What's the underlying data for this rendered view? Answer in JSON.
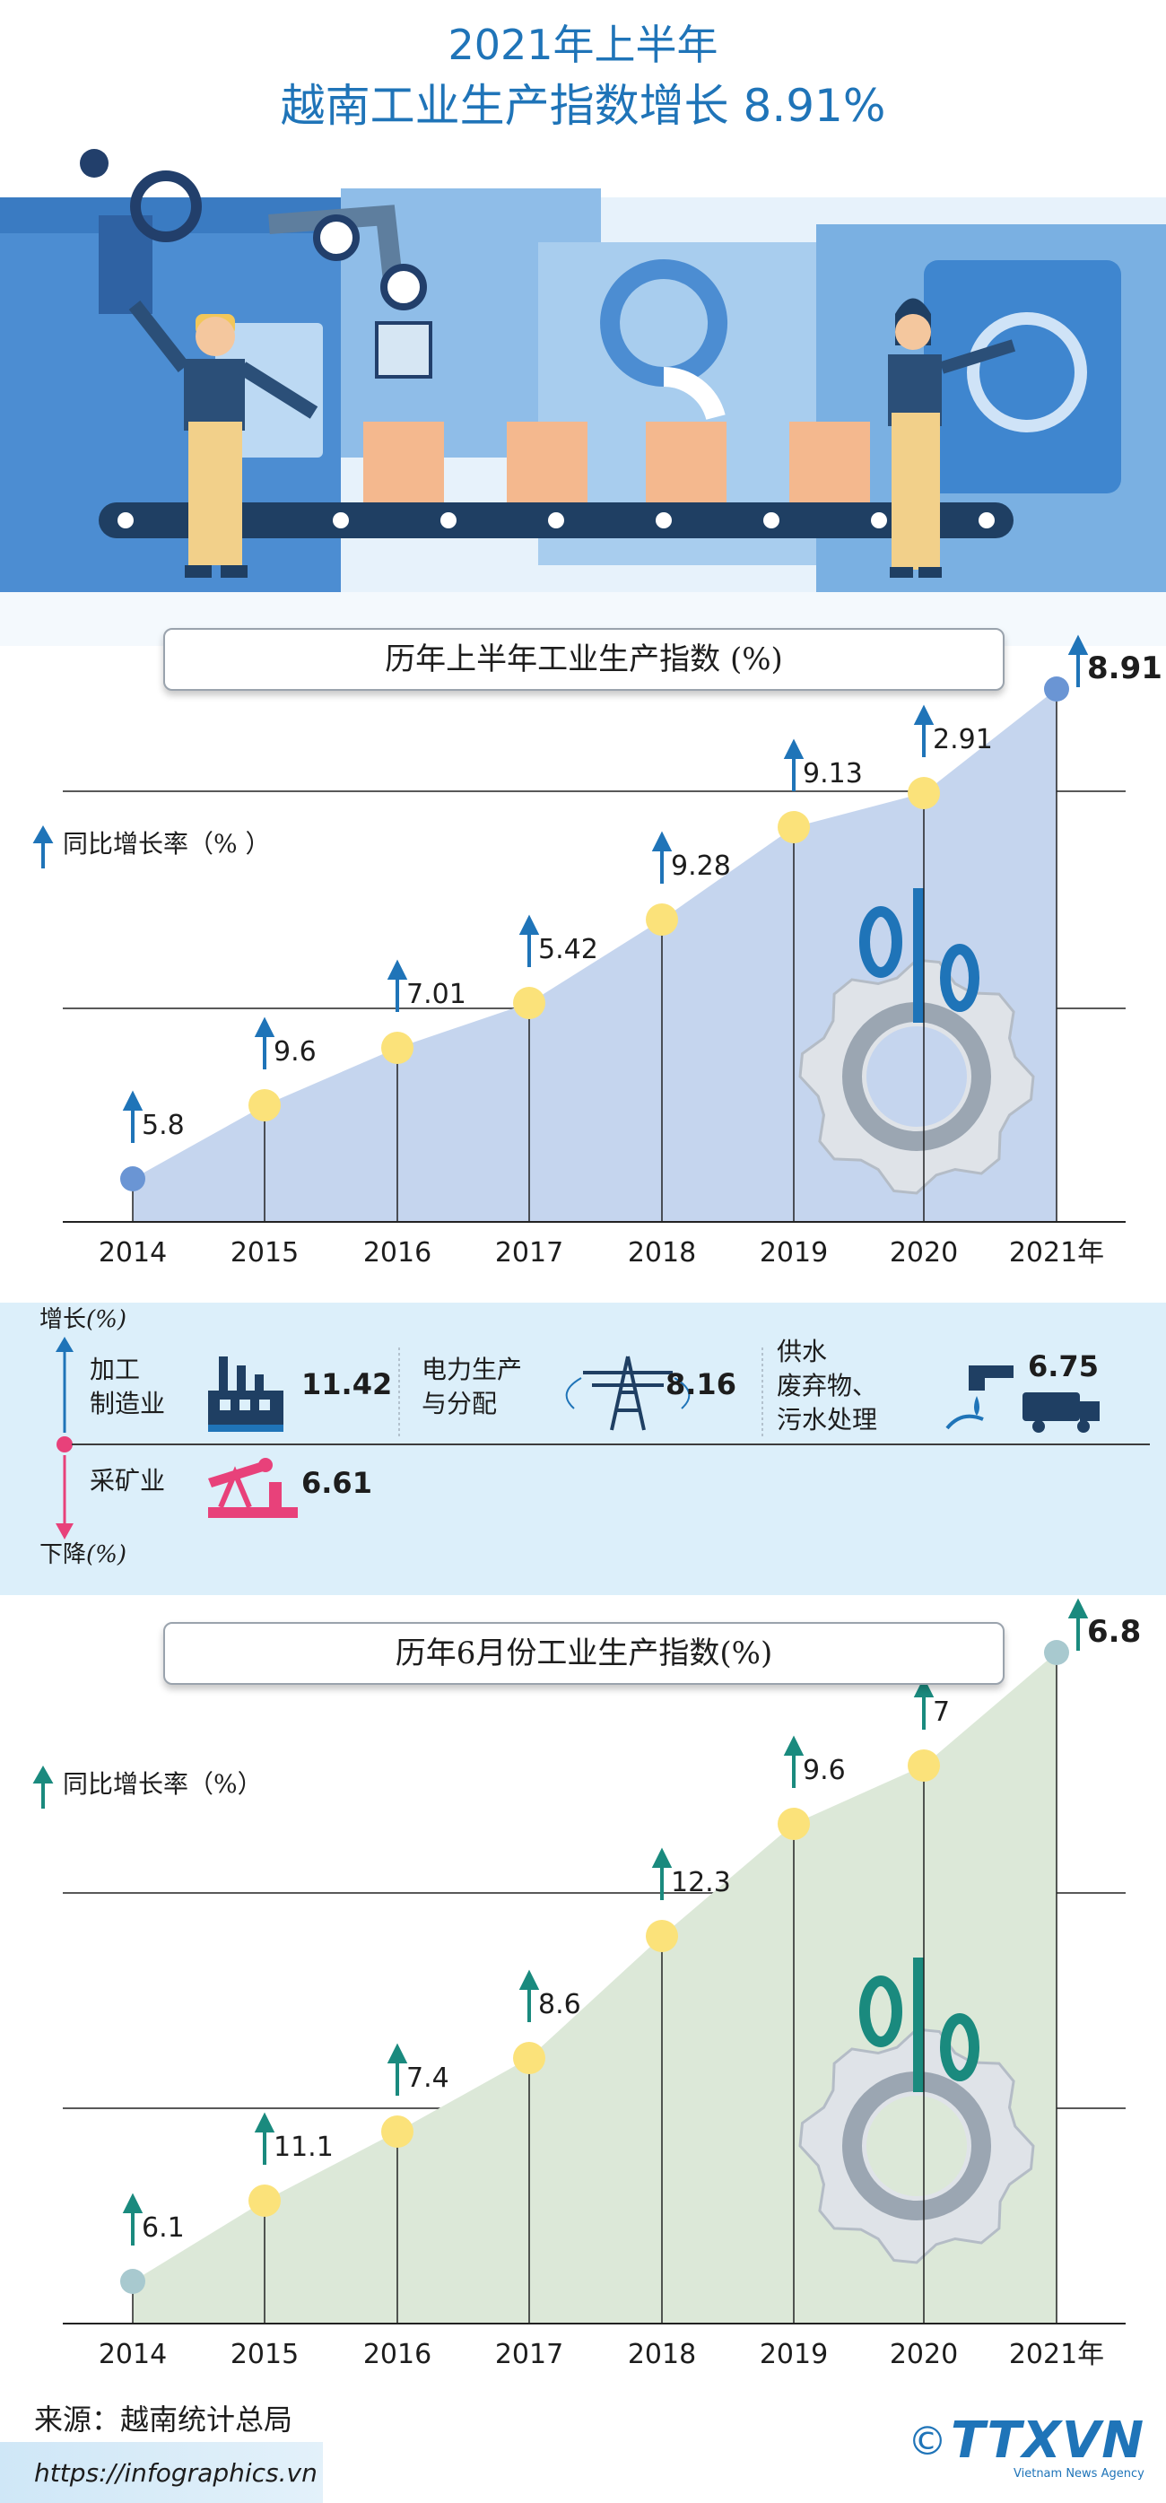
{
  "header": {
    "title_line1": "2021年上半年",
    "title_line2": "越南工业生产指数增长 8.91%"
  },
  "chart_data": [
    {
      "type": "area",
      "title": "历年上半年工业生产指数 (%)",
      "ylabel": "同比增长率（% ）",
      "categories": [
        "2014",
        "2015",
        "2016",
        "2017",
        "2018",
        "2019",
        "2020",
        "2021年"
      ],
      "value_labels": [
        "5.8",
        "9.6",
        "7.01",
        "5.42",
        "9.28",
        "9.13",
        "2.91",
        "8.91"
      ],
      "series": [
        {
          "values": [
            5.8,
            9.6,
            7.01,
            5.42,
            9.28,
            9.13,
            2.91,
            8.91
          ]
        }
      ],
      "highlight": "2021年",
      "colors": {
        "area": "#c5d5ee",
        "marker": "#fbe27a",
        "endpoint": "#6a95d4",
        "arrow": "#1f74b8"
      },
      "grid": true
    },
    {
      "type": "area",
      "title": "历年6月份工业生产指数(%)",
      "ylabel": "同比增长率（%）",
      "categories": [
        "2014",
        "2015",
        "2016",
        "2017",
        "2018",
        "2019",
        "2020",
        "2021年"
      ],
      "value_labels": [
        "6.1",
        "11.1",
        "7.4",
        "8.6",
        "12.3",
        "9.6",
        "7",
        "6.8"
      ],
      "series": [
        {
          "values": [
            6.1,
            11.1,
            7.4,
            8.6,
            12.3,
            9.6,
            7,
            6.8
          ]
        }
      ],
      "highlight": "2021年",
      "colors": {
        "area": "#dce8d8",
        "marker": "#fbe27a",
        "endpoint": "#a8c9cf",
        "arrow": "#1a8a7e"
      },
      "grid": true
    }
  ],
  "sectors": {
    "increase_label": "增长",
    "increase_unit": "(%)",
    "decrease_label": "下降",
    "decrease_unit": "(%)",
    "items": [
      {
        "name_line1": "加工",
        "name_line2": "制造业",
        "value": "11.42",
        "icon": "factory-icon",
        "direction": "up"
      },
      {
        "name_line1": "电力生产",
        "name_line2": "与分配",
        "value": "8.16",
        "icon": "power-tower-icon",
        "direction": "up"
      },
      {
        "name_line1": "供水",
        "name_line2": "废弃物、",
        "name_line3": "污水处理",
        "value": "6.75",
        "icon": "water-tap-truck-icon",
        "direction": "up"
      },
      {
        "name_line1": "采矿业",
        "value": "6.61",
        "icon": "oil-pump-icon",
        "direction": "down"
      }
    ],
    "colors": {
      "up": "#1f74b8",
      "down": "#e8417a"
    }
  },
  "footer": {
    "source": "来源：越南统计总局",
    "url": "https://infographics.vn",
    "logo_text": "TTXVN",
    "logo_sub": "Vietnam News Agency",
    "copyright": "©"
  }
}
